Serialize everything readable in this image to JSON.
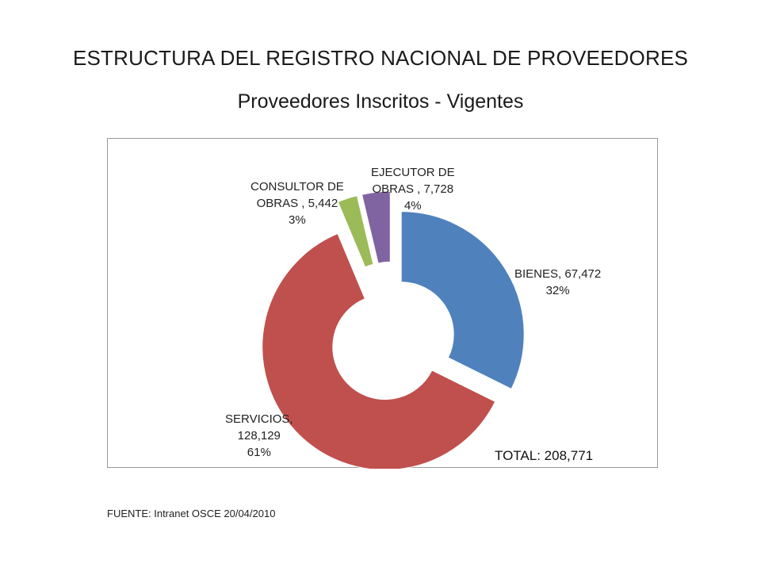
{
  "title": "ESTRUCTURA DEL REGISTRO NACIONAL DE PROVEEDORES",
  "subtitle": "Proveedores Inscritos - Vigentes",
  "chart_data": {
    "type": "pie",
    "style": "exploded-doughnut",
    "slices": [
      {
        "name": "BIENES",
        "value": 67472,
        "value_label": "67,472",
        "percent_label": "32%",
        "color": "#4f81bd",
        "label_line1": "BIENES,  67,472",
        "label_line2": "32%"
      },
      {
        "name": "SERVICIOS",
        "value": 128129,
        "value_label": "128,129",
        "percent_label": "61%",
        "color": "#c0504d",
        "label_line1": "SERVICIOS,",
        "label_line2": "128,129",
        "label_line3": "61%"
      },
      {
        "name": "CONSULTOR DE OBRAS",
        "value": 5442,
        "value_label": "5,442",
        "percent_label": "3%",
        "color": "#9bbb59",
        "label_line1": "CONSULTOR DE",
        "label_line2": "OBRAS , 5,442",
        "label_line3": "3%"
      },
      {
        "name": "EJECUTOR DE OBRAS",
        "value": 7728,
        "value_label": "7,728",
        "percent_label": "4%",
        "color": "#8064a2",
        "label_line1": "EJECUTOR  DE",
        "label_line2": "OBRAS , 7,728",
        "label_line3": "4%"
      }
    ],
    "legend": "none"
  },
  "total_label": "TOTAL: 208,771",
  "source": "FUENTE: Intranet OSCE 20/04/2010"
}
